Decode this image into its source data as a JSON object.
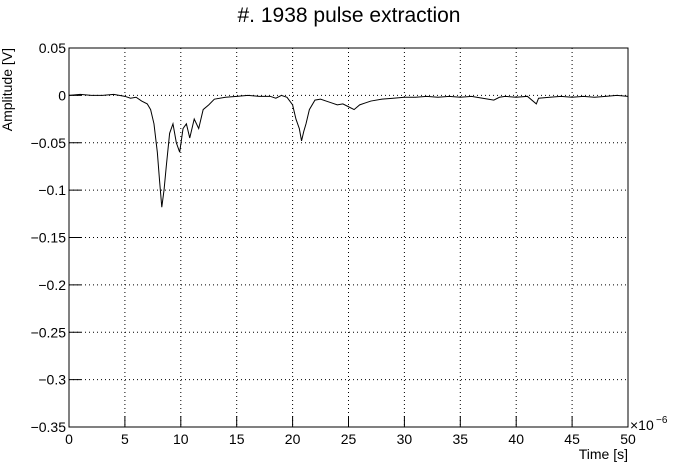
{
  "chart_data": {
    "type": "line",
    "title": "#. 1938 pulse extraction",
    "x_label": "Time [s]",
    "y_label": "Amplitude [V]",
    "x_multiplier": "×10",
    "x_exponent": "−6",
    "xlim": [
      0,
      50
    ],
    "ylim": [
      -0.35,
      0.05
    ],
    "xticks": [
      0,
      5,
      10,
      15,
      20,
      25,
      30,
      35,
      40,
      45,
      50
    ],
    "yticks": [
      {
        "value": 0.05,
        "label": "0.05"
      },
      0,
      {
        "value": -0.05,
        "label": "−0.05"
      },
      {
        "value": -0.1,
        "label": "−0.1"
      },
      {
        "value": -0.15,
        "label": "−0.15"
      },
      {
        "value": -0.2,
        "label": "−0.2"
      },
      {
        "value": -0.25,
        "label": "−0.25"
      },
      {
        "value": -0.3,
        "label": "−0.3"
      },
      {
        "value": -0.35,
        "label": "−0.35"
      }
    ],
    "grid": true,
    "color": "#000000",
    "x": [
      0,
      1,
      2,
      3,
      4,
      5,
      5.5,
      6,
      6.5,
      7,
      7.3,
      7.6,
      7.9,
      8.1,
      8.3,
      8.5,
      8.7,
      9,
      9.3,
      9.6,
      9.9,
      10.2,
      10.5,
      10.8,
      11.2,
      11.6,
      12,
      12.5,
      13,
      14,
      15,
      16,
      17,
      18,
      18.5,
      19,
      19.5,
      20,
      20.3,
      20.6,
      20.8,
      21,
      21.2,
      21.5,
      22,
      22.5,
      23,
      23.5,
      24,
      24.5,
      25,
      25.5,
      26,
      26.5,
      27,
      28,
      29,
      30,
      31,
      32,
      33,
      34,
      35,
      36,
      37,
      38,
      38.5,
      39,
      40,
      41,
      41.8,
      42,
      43,
      44,
      45,
      46,
      47,
      48,
      49,
      50
    ],
    "values": [
      0,
      0.001,
      0,
      0,
      0.001,
      -0.001,
      -0.003,
      -0.002,
      -0.006,
      -0.009,
      -0.015,
      -0.03,
      -0.06,
      -0.09,
      -0.118,
      -0.1,
      -0.075,
      -0.04,
      -0.03,
      -0.05,
      -0.06,
      -0.035,
      -0.03,
      -0.045,
      -0.025,
      -0.035,
      -0.015,
      -0.01,
      -0.004,
      -0.002,
      -0.001,
      0,
      -0.001,
      -0.001,
      -0.003,
      0,
      -0.002,
      -0.01,
      -0.025,
      -0.035,
      -0.048,
      -0.038,
      -0.03,
      -0.015,
      -0.005,
      -0.004,
      -0.006,
      -0.008,
      -0.01,
      -0.009,
      -0.012,
      -0.015,
      -0.01,
      -0.008,
      -0.006,
      -0.004,
      -0.003,
      -0.002,
      -0.002,
      -0.001,
      -0.002,
      -0.001,
      -0.002,
      -0.001,
      -0.003,
      -0.005,
      -0.002,
      -0.001,
      -0.002,
      -0.001,
      -0.009,
      -0.003,
      -0.002,
      -0.001,
      -0.002,
      -0.001,
      -0.002,
      -0.001,
      0,
      -0.001
    ]
  }
}
